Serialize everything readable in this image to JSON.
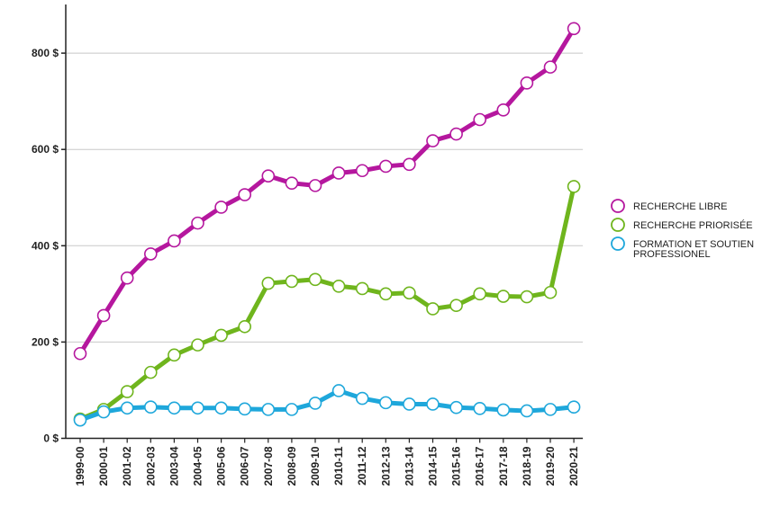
{
  "chart_data": {
    "type": "line",
    "title": "",
    "xlabel": "",
    "ylabel": "",
    "ylim": [
      0,
      900
    ],
    "yticks": [
      0,
      200,
      400,
      600,
      800
    ],
    "ytick_labels": [
      "0 $",
      "200 $",
      "400 $",
      "600 $",
      "800 $"
    ],
    "grid": "horizontal",
    "legend_position": "right",
    "categories": [
      "1999-00",
      "2000-01",
      "2001-02",
      "2002-03",
      "2003-04",
      "2004-05",
      "2005-06",
      "2006-07",
      "2007-08",
      "2008-09",
      "2009-10",
      "2010-11",
      "2011-12",
      "2012-13",
      "2013-14",
      "2014-15",
      "2015-16",
      "2016-17",
      "2017-18",
      "2018-19",
      "2019-20",
      "2020-21"
    ],
    "series": [
      {
        "name": "RECHERCHE LIBRE",
        "color": "#b5179e",
        "values": [
          176,
          255,
          333,
          383,
          410,
          447,
          480,
          506,
          545,
          530,
          525,
          551,
          556,
          565,
          569,
          618,
          632,
          662,
          682,
          738,
          771,
          851
        ]
      },
      {
        "name": "RECHERCHE PRIORISÉE",
        "color": "#6fb51d",
        "values": [
          40,
          60,
          97,
          137,
          173,
          194,
          214,
          232,
          322,
          326,
          330,
          316,
          311,
          300,
          302,
          269,
          276,
          300,
          295,
          294,
          303,
          523
        ]
      },
      {
        "name": "FORMATION ET SOUTIEN PROFESSIONEL",
        "label_lines": [
          "FORMATION ET SOUTIEN",
          " PROFESSIONEL"
        ],
        "color": "#1ea7db",
        "values": [
          38,
          55,
          63,
          65,
          63,
          63,
          63,
          61,
          60,
          60,
          73,
          99,
          83,
          74,
          71,
          71,
          64,
          62,
          59,
          57,
          60,
          65
        ]
      }
    ]
  }
}
